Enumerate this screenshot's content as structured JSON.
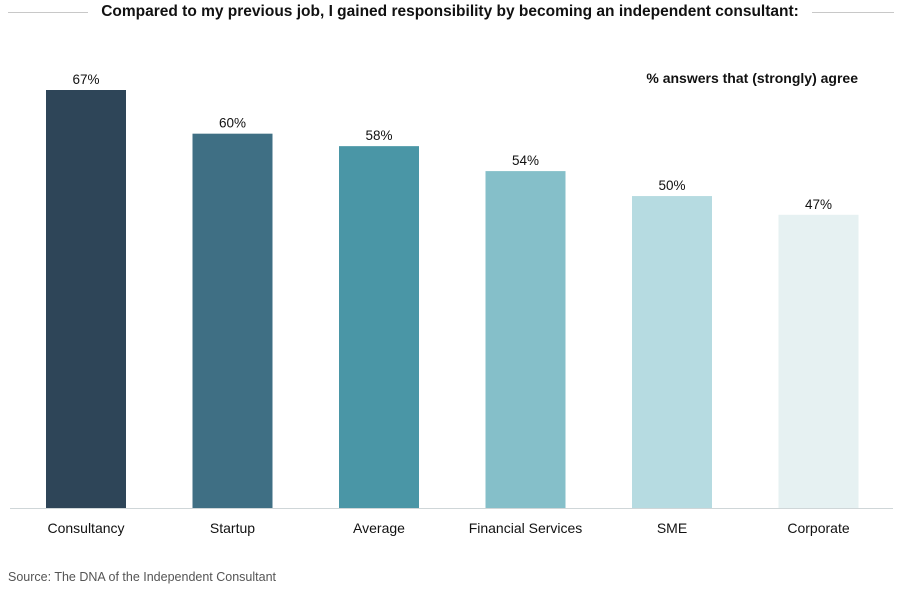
{
  "header": {
    "title": "Compared to my previous job, I gained responsibility by becoming an independent consultant:"
  },
  "legend": {
    "label": "% answers that (strongly) agree"
  },
  "footer": {
    "source": "Source: The DNA of the Independent Consultant"
  },
  "chart_data": {
    "type": "bar",
    "title": "Compared to my previous job, I gained responsibility by becoming an independent consultant:",
    "subtitle": "% answers that (strongly) agree",
    "categories": [
      "Consultancy",
      "Startup",
      "Average",
      "Financial Services",
      "SME",
      "Corporate"
    ],
    "values": [
      67,
      60,
      58,
      54,
      50,
      47
    ],
    "value_labels": [
      "67%",
      "60%",
      "58%",
      "54%",
      "50%",
      "47%"
    ],
    "colors": [
      "#2e4558",
      "#3f6f84",
      "#4a96a6",
      "#85bfc9",
      "#b6dbe1",
      "#e6f1f2"
    ],
    "baseline_color": "#cfd6d8",
    "xlabel": "",
    "ylabel": "",
    "ylim": [
      0,
      70
    ],
    "grid": false
  }
}
